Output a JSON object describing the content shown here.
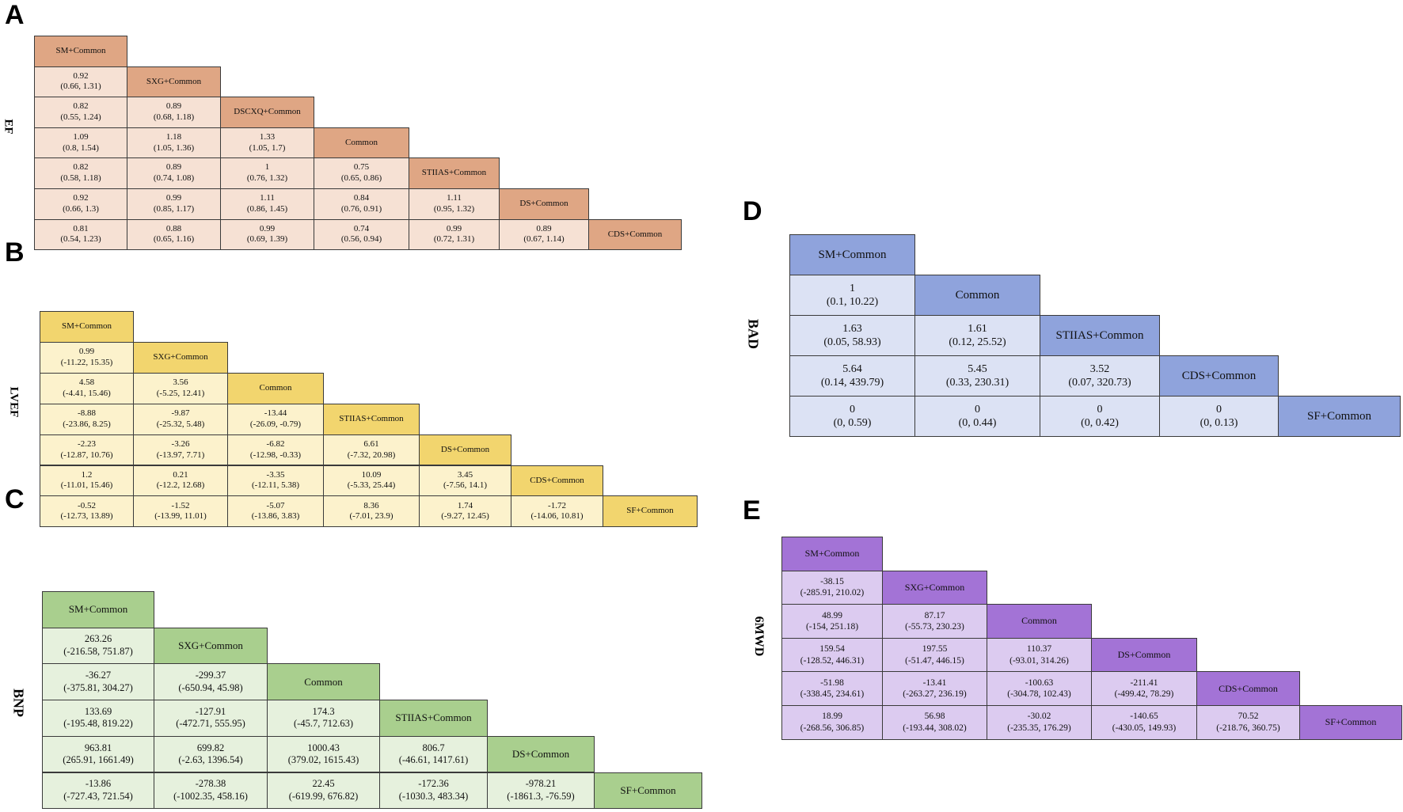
{
  "panels": [
    {
      "letter": "A",
      "outcome": "EF",
      "colors": {
        "header": "#DFA684",
        "body": "#F6E1D4"
      },
      "treatments": [
        "SM+Common",
        "SXG+Common",
        "DSCXQ+Common",
        "Common",
        "STIIAS+Common",
        "DS+Common",
        "CDS+Common"
      ],
      "rows": [
        [],
        [
          [
            "0.92",
            "(0.66, 1.31)"
          ]
        ],
        [
          [
            "0.82",
            "(0.55, 1.24)"
          ],
          [
            "0.89",
            "(0.68, 1.18)"
          ]
        ],
        [
          [
            "1.09",
            "(0.8, 1.54)"
          ],
          [
            "1.18",
            "(1.05, 1.36)"
          ],
          [
            "1.33",
            "(1.05, 1.7)"
          ]
        ],
        [
          [
            "0.82",
            "(0.58, 1.18)"
          ],
          [
            "0.89",
            "(0.74, 1.08)"
          ],
          [
            "1",
            "(0.76, 1.32)"
          ],
          [
            "0.75",
            "(0.65, 0.86)"
          ]
        ],
        [
          [
            "0.92",
            "(0.66, 1.3)"
          ],
          [
            "0.99",
            "(0.85, 1.17)"
          ],
          [
            "1.11",
            "(0.86, 1.45)"
          ],
          [
            "0.84",
            "(0.76, 0.91)"
          ],
          [
            "1.11",
            "(0.95, 1.32)"
          ]
        ],
        [
          [
            "0.81",
            "(0.54, 1.23)"
          ],
          [
            "0.88",
            "(0.65, 1.16)"
          ],
          [
            "0.99",
            "(0.69, 1.39)"
          ],
          [
            "0.74",
            "(0.56, 0.94)"
          ],
          [
            "0.99",
            "(0.72, 1.31)"
          ],
          [
            "0.89",
            "(0.67, 1.14)"
          ]
        ]
      ]
    },
    {
      "letter": "B",
      "outcome": "LVEF",
      "colors": {
        "header": "#F2D56E",
        "body": "#FCF2CC"
      },
      "treatments": [
        "SM+Common",
        "SXG+Common",
        "Common",
        "STIIAS+Common",
        "DS+Common",
        "CDS+Common",
        "SF+Common"
      ],
      "rows": [
        [],
        [
          [
            "0.99",
            "(-11.22, 15.35)"
          ]
        ],
        [
          [
            "4.58",
            "(-4.41, 15.46)"
          ],
          [
            "3.56",
            "(-5.25, 12.41)"
          ]
        ],
        [
          [
            "-8.88",
            "(-23.86, 8.25)"
          ],
          [
            "-9.87",
            "(-25.32, 5.48)"
          ],
          [
            "-13.44",
            "(-26.09, -0.79)"
          ]
        ],
        [
          [
            "-2.23",
            "(-12.87, 10.76)"
          ],
          [
            "-3.26",
            "(-13.97, 7.71)"
          ],
          [
            "-6.82",
            "(-12.98, -0.33)"
          ],
          [
            "6.61",
            "(-7.32, 20.98)"
          ]
        ],
        [
          [
            "1.2",
            "(-11.01, 15.46)"
          ],
          [
            "0.21",
            "(-12.2, 12.68)"
          ],
          [
            "-3.35",
            "(-12.11, 5.38)"
          ],
          [
            "10.09",
            "(-5.33, 25.44)"
          ],
          [
            "3.45",
            "(-7.56, 14.1)"
          ]
        ],
        [
          [
            "-0.52",
            "(-12.73, 13.89)"
          ],
          [
            "-1.52",
            "(-13.99, 11.01)"
          ],
          [
            "-5.07",
            "(-13.86, 3.83)"
          ],
          [
            "8.36",
            "(-7.01, 23.9)"
          ],
          [
            "1.74",
            "(-9.27, 12.45)"
          ],
          [
            "-1.72",
            "(-14.06, 10.81)"
          ]
        ]
      ]
    },
    {
      "letter": "C",
      "outcome": "BNP",
      "colors": {
        "header": "#A9CF8E",
        "body": "#E6F1DD"
      },
      "treatments": [
        "SM+Common",
        "SXG+Common",
        "Common",
        "STIIAS+Common",
        "DS+Common",
        "SF+Common"
      ],
      "rows": [
        [],
        [
          [
            "263.26",
            "(-216.58, 751.87)"
          ]
        ],
        [
          [
            "-36.27",
            "(-375.81, 304.27)"
          ],
          [
            "-299.37",
            "(-650.94, 45.98)"
          ]
        ],
        [
          [
            "133.69",
            "(-195.48, 819.22)"
          ],
          [
            "-127.91",
            "(-472.71, 555.95)"
          ],
          [
            "174.3",
            "(-45.7, 712.63)"
          ]
        ],
        [
          [
            "963.81",
            "(265.91, 1661.49)"
          ],
          [
            "699.82",
            "(-2.63, 1396.54)"
          ],
          [
            "1000.43",
            "(379.02, 1615.43)"
          ],
          [
            "806.7",
            "(-46.61, 1417.61)"
          ]
        ],
        [
          [
            "-13.86",
            "(-727.43, 721.54)"
          ],
          [
            "-278.38",
            "(-1002.35, 458.16)"
          ],
          [
            "22.45",
            "(-619.99, 676.82)"
          ],
          [
            "-172.36",
            "(-1030.3, 483.34)"
          ],
          [
            "-978.21",
            "(-1861.3, -76.59)"
          ]
        ]
      ]
    },
    {
      "letter": "D",
      "outcome": "BAD",
      "colors": {
        "header": "#8FA3DC",
        "body": "#DCE2F4"
      },
      "treatments": [
        "SM+Common",
        "Common",
        "STIIAS+Common",
        "CDS+Common",
        "SF+Common"
      ],
      "rows": [
        [],
        [
          [
            "1",
            "(0.1, 10.22)"
          ]
        ],
        [
          [
            "1.63",
            "(0.05, 58.93)"
          ],
          [
            "1.61",
            "(0.12, 25.52)"
          ]
        ],
        [
          [
            "5.64",
            "(0.14, 439.79)"
          ],
          [
            "5.45",
            "(0.33, 230.31)"
          ],
          [
            "3.52",
            "(0.07, 320.73)"
          ]
        ],
        [
          [
            "0",
            "(0, 0.59)"
          ],
          [
            "0",
            "(0, 0.44)"
          ],
          [
            "0",
            "(0, 0.42)"
          ],
          [
            "0",
            "(0, 0.13)"
          ]
        ]
      ]
    },
    {
      "letter": "E",
      "outcome": "6MWD",
      "colors": {
        "header": "#A373D6",
        "body": "#DCCBF0"
      },
      "treatments": [
        "SM+Common",
        "SXG+Common",
        "Common",
        "DS+Common",
        "CDS+Common",
        "SF+Common"
      ],
      "rows": [
        [],
        [
          [
            "-38.15",
            "(-285.91, 210.02)"
          ]
        ],
        [
          [
            "48.99",
            "(-154, 251.18)"
          ],
          [
            "87.17",
            "(-55.73, 230.23)"
          ]
        ],
        [
          [
            "159.54",
            "(-128.52, 446.31)"
          ],
          [
            "197.55",
            "(-51.47, 446.15)"
          ],
          [
            "110.37",
            "(-93.01, 314.26)"
          ]
        ],
        [
          [
            "-51.98",
            "(-338.45, 234.61)"
          ],
          [
            "-13.41",
            "(-263.27, 236.19)"
          ],
          [
            "-100.63",
            "(-304.78, 102.43)"
          ],
          [
            "-211.41",
            "(-499.42, 78.29)"
          ]
        ],
        [
          [
            "18.99",
            "(-268.56, 306.85)"
          ],
          [
            "56.98",
            "(-193.44, 308.02)"
          ],
          [
            "-30.02",
            "(-235.35, 176.29)"
          ],
          [
            "-140.65",
            "(-430.05, 149.93)"
          ],
          [
            "70.52",
            "(-218.76, 360.75)"
          ]
        ]
      ]
    }
  ]
}
